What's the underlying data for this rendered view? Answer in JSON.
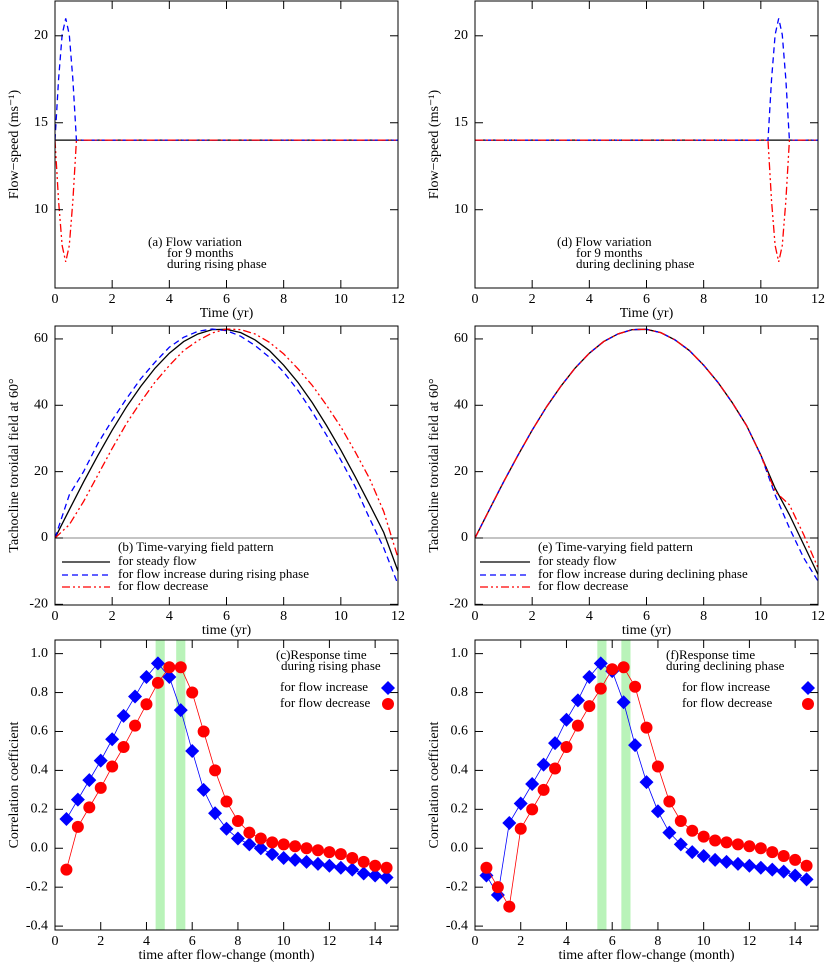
{
  "chart_data": [
    {
      "type": "line",
      "ylabel": "Flow−speed (ms⁻¹)",
      "xlabel": "Time (yr)",
      "xlim": [
        0,
        12
      ],
      "ylim": [
        5.5,
        22
      ],
      "xticks": [
        0,
        2,
        4,
        6,
        8,
        10,
        12
      ],
      "yticks": [
        10,
        15,
        20
      ],
      "annotation": [
        "(a) Flow variation",
        "for 9 months",
        "during rising phase"
      ],
      "series": [
        {
          "color": "#000000",
          "style": "solid",
          "x": [
            0,
            12
          ],
          "values": [
            14,
            14
          ]
        },
        {
          "color": "#0000ff",
          "style": "dashed",
          "x": [
            0,
            0.125,
            0.25,
            0.375,
            0.5,
            0.625,
            0.75,
            12
          ],
          "values": [
            14,
            17.5,
            20.06,
            21,
            20.06,
            17.5,
            14,
            14
          ]
        },
        {
          "color": "#ff0000",
          "style": "dash-dot-dot",
          "x": [
            0,
            0.125,
            0.25,
            0.375,
            0.5,
            0.625,
            0.75,
            12
          ],
          "values": [
            14,
            10.5,
            7.94,
            7,
            7.94,
            10.5,
            14,
            14
          ]
        }
      ]
    },
    {
      "type": "line",
      "ylabel": "Tachocline toroidal field at 60°",
      "xlabel": "time (yr)",
      "xlim": [
        0,
        12
      ],
      "ylim": [
        -20.2,
        63.9
      ],
      "xticks": [
        0,
        2,
        4,
        6,
        8,
        10,
        12
      ],
      "yticks": [
        -20,
        0,
        20,
        40,
        60
      ],
      "reference_line": 0,
      "annotation": [
        "(b) Time-varying field pattern"
      ],
      "x": [
        0,
        0.5,
        1,
        1.5,
        2,
        2.5,
        3,
        3.5,
        4,
        4.5,
        5,
        5.5,
        6,
        6.5,
        7,
        7.5,
        8,
        8.5,
        9,
        9.5,
        10,
        10.5,
        11,
        11.5,
        12
      ],
      "series": [
        {
          "name": "for steady flow",
          "color": "#000000",
          "style": "solid",
          "values": [
            0,
            8.5,
            16.9,
            24.9,
            32.5,
            39.5,
            45.7,
            51.2,
            55.7,
            59.2,
            61.5,
            62.8,
            62.9,
            61.9,
            59.7,
            56.5,
            52.1,
            46.9,
            40.8,
            33.9,
            26.5,
            18.5,
            10.2,
            1.7,
            -10
          ]
        },
        {
          "name": "for flow increase during rising phase",
          "color": "#0000ff",
          "style": "dashed",
          "values": [
            0,
            13,
            20,
            28.5,
            35.5,
            42,
            48,
            53,
            57.5,
            60.5,
            62.3,
            63,
            62.5,
            60.8,
            58,
            54.5,
            50,
            44.5,
            38,
            31,
            23.5,
            15.5,
            6,
            -3,
            -14
          ]
        },
        {
          "name": "for flow decrease",
          "color": "#ff0000",
          "style": "dash-dot-dot",
          "values": [
            0,
            4,
            11,
            19,
            27,
            34.5,
            41,
            47,
            52,
            56.5,
            59.5,
            61.8,
            63,
            62.8,
            61.5,
            59,
            55.5,
            51,
            46,
            40,
            33.5,
            26,
            18,
            8,
            -6
          ]
        }
      ]
    },
    {
      "type": "scatter",
      "ylabel": "Correlation coefficient",
      "xlabel": "time after flow-change (month)",
      "xlim": [
        0,
        15
      ],
      "ylim": [
        -0.42,
        1.07
      ],
      "xticks": [
        0,
        2,
        4,
        6,
        8,
        10,
        12,
        14
      ],
      "yticks": [
        -0.4,
        -0.2,
        {
          "value": 0,
          "label": "0.0"
        },
        0.2,
        0.4,
        0.6,
        0.8,
        {
          "value": 1,
          "label": "1.0"
        }
      ],
      "highlights": [
        4.6,
        5.5
      ],
      "highlight_color": "#b9f3b9",
      "annotation": [
        "(c)Response time",
        "during rising phase"
      ],
      "x": [
        0.5,
        1,
        1.5,
        2,
        2.5,
        3,
        3.5,
        4,
        4.5,
        5,
        5.5,
        6,
        6.5,
        7,
        7.5,
        8,
        8.5,
        9,
        9.5,
        10,
        10.5,
        11,
        11.5,
        12,
        12.5,
        13,
        13.5,
        14,
        14.5
      ],
      "series": [
        {
          "name": "for flow increase",
          "color": "#0000ff",
          "marker": "diamond",
          "values": [
            0.15,
            0.25,
            0.35,
            0.45,
            0.56,
            0.68,
            0.78,
            0.88,
            0.95,
            0.88,
            0.71,
            0.5,
            0.3,
            0.18,
            0.1,
            0.05,
            0.02,
            0,
            -0.03,
            -0.05,
            -0.06,
            -0.07,
            -0.08,
            -0.09,
            -0.1,
            -0.11,
            -0.13,
            -0.14,
            -0.15
          ]
        },
        {
          "name": "for flow decrease",
          "color": "#ff0000",
          "marker": "circle",
          "values": [
            -0.11,
            0.11,
            0.21,
            0.31,
            0.42,
            0.52,
            0.63,
            0.74,
            0.85,
            0.93,
            0.93,
            0.8,
            0.6,
            0.4,
            0.24,
            0.14,
            0.08,
            0.05,
            0.03,
            0.02,
            0.01,
            0,
            -0.01,
            -0.02,
            -0.03,
            -0.05,
            -0.07,
            -0.09,
            -0.1
          ]
        }
      ]
    },
    {
      "type": "line",
      "ylabel": "Flow−speed (ms⁻¹)",
      "xlabel": "Time (yr)",
      "xlim": [
        0,
        12
      ],
      "ylim": [
        5.5,
        22
      ],
      "xticks": [
        0,
        2,
        4,
        6,
        8,
        10,
        12
      ],
      "yticks": [
        10,
        15,
        20
      ],
      "annotation": [
        "(d) Flow variation",
        "for 9 months",
        "during declining phase"
      ],
      "series": [
        {
          "color": "#000000",
          "style": "solid",
          "x": [
            0,
            12
          ],
          "values": [
            14,
            14
          ]
        },
        {
          "color": "#0000ff",
          "style": "dashed",
          "x": [
            0,
            10.25,
            10.375,
            10.5,
            10.625,
            10.75,
            10.875,
            11,
            12
          ],
          "values": [
            14,
            14,
            17.5,
            20.06,
            21,
            20.06,
            17.5,
            14,
            14
          ]
        },
        {
          "color": "#ff0000",
          "style": "dash-dot-dot",
          "x": [
            0,
            10.25,
            10.375,
            10.5,
            10.625,
            10.75,
            10.875,
            11,
            12
          ],
          "values": [
            14,
            14,
            10.5,
            7.94,
            7,
            7.94,
            10.5,
            14,
            14
          ]
        }
      ]
    },
    {
      "type": "line",
      "ylabel": "Tachocline toroidal field at 60°",
      "xlabel": "time (yr)",
      "xlim": [
        0,
        12
      ],
      "ylim": [
        -20.2,
        63.9
      ],
      "xticks": [
        0,
        2,
        4,
        6,
        8,
        10,
        12
      ],
      "yticks": [
        -20,
        0,
        20,
        40,
        60
      ],
      "reference_line": 0,
      "annotation": [
        "(e) Time-varying field pattern"
      ],
      "x": [
        0,
        0.5,
        1,
        1.5,
        2,
        2.5,
        3,
        3.5,
        4,
        4.5,
        5,
        5.5,
        6,
        6.5,
        7,
        7.5,
        8,
        8.5,
        9,
        9.5,
        10,
        10.5,
        11,
        11.5,
        12
      ],
      "series": [
        {
          "name": "for steady flow",
          "color": "#000000",
          "style": "solid",
          "values": [
            0,
            8.5,
            16.9,
            24.9,
            32.5,
            39.5,
            45.7,
            51.2,
            55.7,
            59.2,
            61.5,
            62.8,
            62.9,
            61.9,
            59.7,
            56.5,
            52.1,
            46.9,
            40.8,
            33.9,
            25,
            15,
            7,
            -2,
            -11
          ]
        },
        {
          "name": "for flow increase during declining phase",
          "color": "#0000ff",
          "style": "dashed",
          "values": [
            0,
            8.5,
            16.9,
            24.9,
            32.5,
            39.5,
            45.7,
            51.2,
            55.7,
            59.2,
            61.5,
            62.8,
            62.9,
            61.9,
            59.7,
            56.5,
            52.1,
            46.9,
            40.8,
            33.9,
            25,
            13,
            3,
            -6,
            -13
          ]
        },
        {
          "name": "for flow decrease",
          "color": "#ff0000",
          "style": "dash-dot-dot",
          "values": [
            0,
            8.5,
            16.9,
            24.9,
            32.5,
            39.5,
            45.7,
            51.2,
            55.7,
            59.2,
            61.5,
            62.8,
            62.9,
            61.9,
            59.7,
            56.5,
            52.1,
            46.9,
            40.8,
            33.9,
            25,
            14,
            10,
            1,
            -9
          ]
        }
      ]
    },
    {
      "type": "scatter",
      "ylabel": "Correlation coefficient",
      "xlabel": "time after flow-change (month)",
      "xlim": [
        0,
        15
      ],
      "ylim": [
        -0.42,
        1.07
      ],
      "xticks": [
        0,
        2,
        4,
        6,
        8,
        10,
        12,
        14
      ],
      "yticks": [
        -0.4,
        -0.2,
        {
          "value": 0,
          "label": "0.0"
        },
        0.2,
        0.4,
        0.6,
        0.8,
        {
          "value": 1,
          "label": "1.0"
        }
      ],
      "highlights": [
        5.55,
        6.6
      ],
      "highlight_color": "#b9f3b9",
      "annotation": [
        "(f)Response time",
        "during declining phase"
      ],
      "x": [
        0.5,
        1,
        1.5,
        2,
        2.5,
        3,
        3.5,
        4,
        4.5,
        5,
        5.5,
        6,
        6.5,
        7,
        7.5,
        8,
        8.5,
        9,
        9.5,
        10,
        10.5,
        11,
        11.5,
        12,
        12.5,
        13,
        13.5,
        14,
        14.5
      ],
      "series": [
        {
          "name": "for flow increase",
          "color": "#0000ff",
          "marker": "diamond",
          "values": [
            -0.14,
            -0.24,
            0.13,
            0.23,
            0.33,
            0.43,
            0.54,
            0.66,
            0.76,
            0.88,
            0.95,
            0.91,
            0.75,
            0.53,
            0.34,
            0.19,
            0.08,
            0.02,
            -0.02,
            -0.04,
            -0.06,
            -0.07,
            -0.08,
            -0.09,
            -0.1,
            -0.11,
            -0.12,
            -0.14,
            -0.16
          ]
        },
        {
          "name": "for flow decrease",
          "color": "#ff0000",
          "marker": "circle",
          "values": [
            -0.1,
            -0.2,
            -0.3,
            0.1,
            0.2,
            0.3,
            0.41,
            0.52,
            0.63,
            0.73,
            0.82,
            0.92,
            0.93,
            0.83,
            0.62,
            0.42,
            0.24,
            0.14,
            0.09,
            0.06,
            0.04,
            0.03,
            0.02,
            0.01,
            0,
            -0.02,
            -0.04,
            -0.06,
            -0.09
          ]
        }
      ]
    }
  ]
}
